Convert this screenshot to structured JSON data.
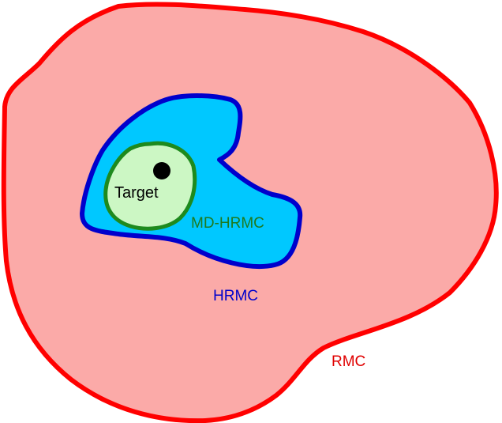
{
  "regions": [
    {
      "id": "rmc",
      "label": "RMC",
      "fill": "#fbaaa8",
      "stroke": "#ff0000",
      "label_color": "#e00000"
    },
    {
      "id": "hrmc",
      "label": "HRMC",
      "fill": "#00c8ff",
      "stroke": "#0000cc",
      "label_color": "#0000cc"
    },
    {
      "id": "md_hrmc",
      "label": "MD-HRMC",
      "fill": "#ccf7c4",
      "stroke": "#1e8a1e",
      "label_color": "#1e7a1e"
    }
  ],
  "target": {
    "label": "Target",
    "dot_color": "#000000",
    "label_color": "#000000"
  }
}
